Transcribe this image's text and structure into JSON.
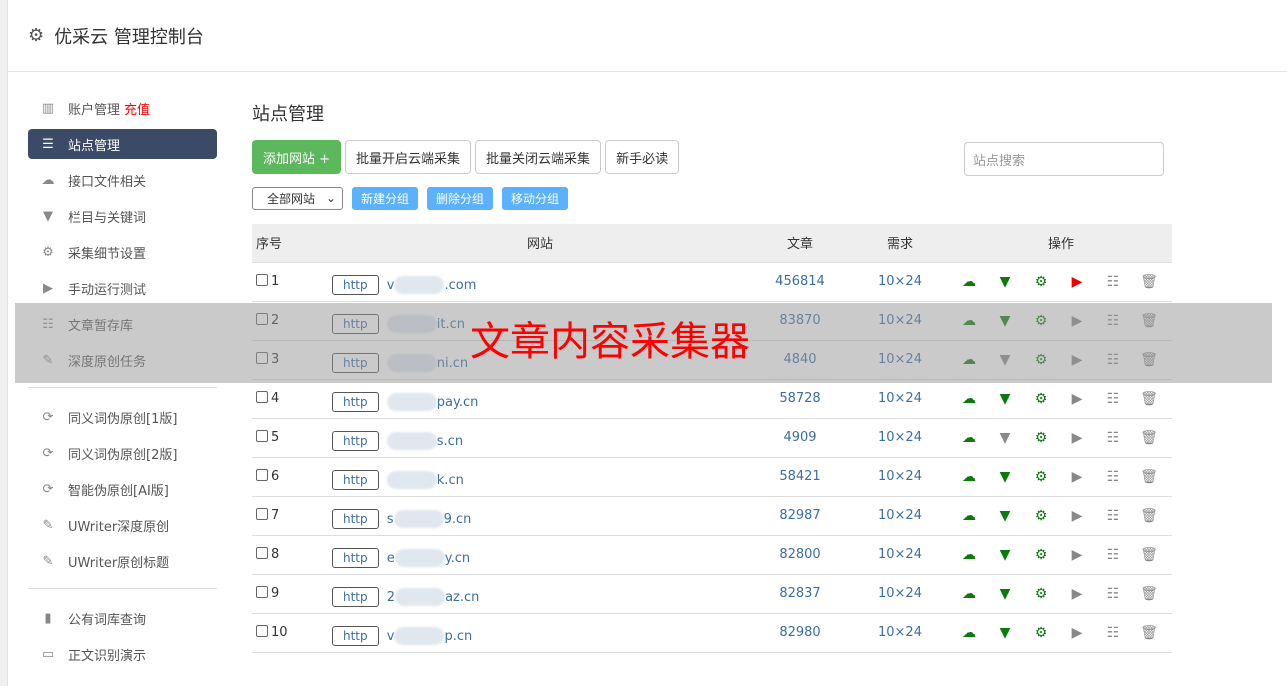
{
  "header": {
    "title": "优采云 管理控制台",
    "icon": "gear-icon"
  },
  "sidebar": {
    "groups": [
      [
        {
          "label": "账户管理",
          "badge": "充值",
          "icon": "bar-chart-icon"
        },
        {
          "label": "站点管理",
          "icon": "server-icon",
          "active": true
        },
        {
          "label": "接口文件相关",
          "icon": "cloud-upload-icon"
        },
        {
          "label": "栏目与关键词",
          "icon": "filter-icon"
        },
        {
          "label": "采集细节设置",
          "icon": "gears-icon"
        },
        {
          "label": "手动运行测试",
          "icon": "play-icon"
        },
        {
          "label": "文章暂存库",
          "icon": "database-icon"
        },
        {
          "label": "深度原创任务",
          "icon": "edit-icon"
        }
      ],
      [
        {
          "label": "同义词伪原创[1版]",
          "icon": "refresh-icon"
        },
        {
          "label": "同义词伪原创[2版]",
          "icon": "refresh-icon"
        },
        {
          "label": "智能伪原创[AI版]",
          "icon": "refresh-icon"
        },
        {
          "label": "UWriter深度原创",
          "icon": "edit-icon"
        },
        {
          "label": "UWriter原创标题",
          "icon": "edit-icon"
        }
      ],
      [
        {
          "label": "公有词库查询",
          "icon": "book-icon"
        },
        {
          "label": "正文识别演示",
          "icon": "monitor-icon"
        }
      ]
    ]
  },
  "main": {
    "title": "站点管理",
    "buttons": {
      "add": "添加网站 +",
      "enable": "批量开启云端采集",
      "disable": "批量关闭云端采集",
      "guide": "新手必读"
    },
    "search_placeholder": "站点搜索",
    "group_select": "全部网站",
    "group_buttons": {
      "new": "新建分组",
      "delete": "删除分组",
      "move": "移动分组"
    },
    "columns": [
      "序号",
      "网站",
      "文章",
      "需求",
      "操作"
    ],
    "rows": [
      {
        "no": "1",
        "protocol": "http",
        "site_prefix": "v",
        "site_suffix": ".com",
        "articles": "456814",
        "demand": "10×24",
        "filter": "on",
        "run": "active"
      },
      {
        "no": "2",
        "protocol": "http",
        "site_prefix": "",
        "site_suffix": "it.cn",
        "articles": "83870",
        "demand": "10×24",
        "filter": "on",
        "run": "idle"
      },
      {
        "no": "3",
        "protocol": "http",
        "site_prefix": "",
        "site_suffix": "ni.cn",
        "articles": "4840",
        "demand": "10×24",
        "filter": "off",
        "run": "idle"
      },
      {
        "no": "4",
        "protocol": "http",
        "site_prefix": "",
        "site_suffix": "pay.cn",
        "articles": "58728",
        "demand": "10×24",
        "filter": "on",
        "run": "idle"
      },
      {
        "no": "5",
        "protocol": "http",
        "site_prefix": "",
        "site_suffix": "s.cn",
        "articles": "4909",
        "demand": "10×24",
        "filter": "off",
        "run": "idle"
      },
      {
        "no": "6",
        "protocol": "http",
        "site_prefix": "",
        "site_suffix": "k.cn",
        "articles": "58421",
        "demand": "10×24",
        "filter": "on",
        "run": "idle"
      },
      {
        "no": "7",
        "protocol": "http",
        "site_prefix": "s",
        "site_suffix": "9.cn",
        "articles": "82987",
        "demand": "10×24",
        "filter": "on",
        "run": "idle"
      },
      {
        "no": "8",
        "protocol": "http",
        "site_prefix": "e",
        "site_suffix": "y.cn",
        "articles": "82800",
        "demand": "10×24",
        "filter": "on",
        "run": "idle"
      },
      {
        "no": "9",
        "protocol": "http",
        "site_prefix": "2",
        "site_suffix": "az.cn",
        "articles": "82837",
        "demand": "10×24",
        "filter": "on",
        "run": "idle"
      },
      {
        "no": "10",
        "protocol": "http",
        "site_prefix": "v",
        "site_suffix": "p.cn",
        "articles": "82980",
        "demand": "10×24",
        "filter": "on",
        "run": "idle"
      }
    ]
  },
  "overlay": {
    "text": "文章内容采集器"
  },
  "colors": {
    "active_nav": "#3b4a66",
    "add_button": "#5cb85c",
    "group_button": "#5bb1fc",
    "link": "#3a6ea5",
    "icon_green": "#0a7a0a",
    "run_active": "#ee0000"
  }
}
